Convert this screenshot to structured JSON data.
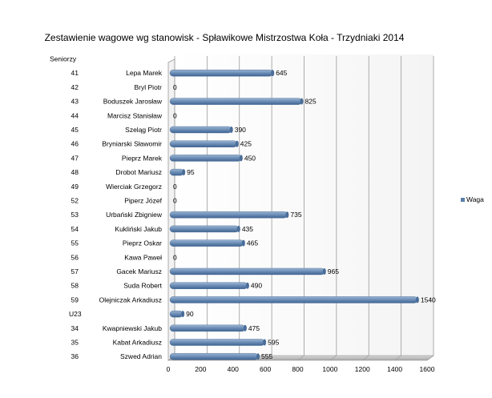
{
  "chart_data": {
    "type": "bar",
    "orientation": "horizontal",
    "title": "Zestawienie wagowe wg stanowisk - Spławikowe Mistrzostwa Koła - Trzydniaki 2014",
    "xlabel": "",
    "ylabel": "",
    "xlim": [
      0,
      1600
    ],
    "xticks": [
      0,
      200,
      400,
      600,
      800,
      1000,
      1200,
      1400,
      1600
    ],
    "grid": true,
    "legend_position": "right",
    "series": [
      {
        "name": "Waga",
        "color": "#5b7fa9",
        "categories": [
          {
            "number": "Seniorzy",
            "name": "",
            "value": null
          },
          {
            "number": "41",
            "name": "Lepa Marek",
            "value": 645
          },
          {
            "number": "42",
            "name": "Bryl Piotr",
            "value": 0
          },
          {
            "number": "43",
            "name": "Boduszek Jarosław",
            "value": 825
          },
          {
            "number": "44",
            "name": "Marcisz Stanisław",
            "value": 0
          },
          {
            "number": "45",
            "name": "Szeląg Piotr",
            "value": 390
          },
          {
            "number": "46",
            "name": "Bryniarski Sławomir",
            "value": 425
          },
          {
            "number": "47",
            "name": "Pieprz Marek",
            "value": 450
          },
          {
            "number": "48",
            "name": "Drobot Mariusz",
            "value": 95
          },
          {
            "number": "49",
            "name": "Wierciak Grzegorz",
            "value": 0
          },
          {
            "number": "52",
            "name": "Piperz Józef",
            "value": 0
          },
          {
            "number": "53",
            "name": "Urbański Zbigniew",
            "value": 735
          },
          {
            "number": "54",
            "name": "Kukliński Jakub",
            "value": 435
          },
          {
            "number": "55",
            "name": "Pieprz Oskar",
            "value": 465
          },
          {
            "number": "56",
            "name": "Kawa Paweł",
            "value": 0
          },
          {
            "number": "57",
            "name": "Gacek Mariusz",
            "value": 965
          },
          {
            "number": "58",
            "name": "Suda Robert",
            "value": 490
          },
          {
            "number": "59",
            "name": "Olejniczak Arkadiusz",
            "value": 1540
          },
          {
            "number": "U23",
            "name": "",
            "value": 90
          },
          {
            "number": "34",
            "name": "Kwapniewski Jakub",
            "value": 475
          },
          {
            "number": "35",
            "name": "Kabat Arkadiusz",
            "value": 595
          },
          {
            "number": "36",
            "name": "Szwed Adrian",
            "value": 555
          }
        ]
      }
    ]
  }
}
